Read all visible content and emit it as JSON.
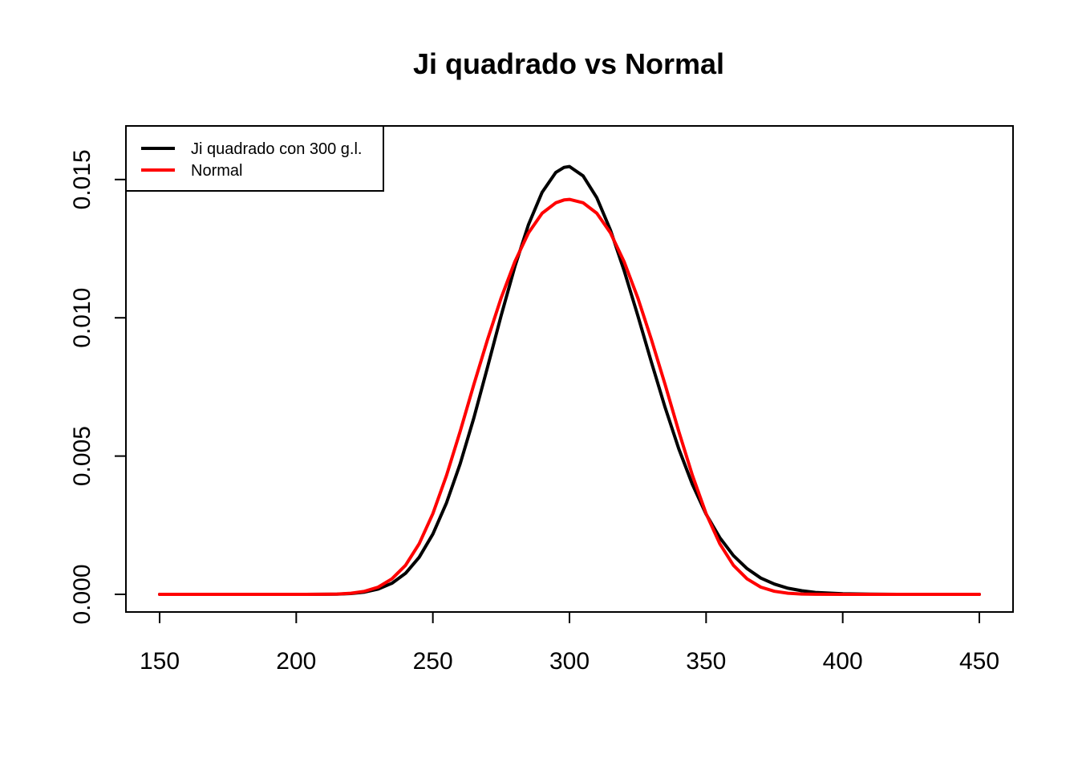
{
  "chart_data": {
    "type": "line",
    "title": "Ji quadrado vs Normal",
    "xlabel": "",
    "ylabel": "",
    "xlim": [
      150,
      450
    ],
    "ylim": [
      0,
      0.0163
    ],
    "x_ticks": [
      150,
      200,
      250,
      300,
      350,
      400,
      450
    ],
    "x_tick_labels": [
      "150",
      "200",
      "250",
      "300",
      "350",
      "400",
      "450"
    ],
    "y_ticks": [
      0.0,
      0.005,
      0.01,
      0.015
    ],
    "y_tick_labels": [
      "0.000",
      "0.005",
      "0.010",
      "0.015"
    ],
    "grid": false,
    "legend_position": "top-left",
    "x": [
      150,
      160,
      170,
      180,
      190,
      200,
      210,
      215,
      220,
      225,
      230,
      235,
      240,
      245,
      250,
      255,
      260,
      265,
      270,
      275,
      280,
      285,
      290,
      295,
      298,
      300,
      305,
      310,
      315,
      320,
      325,
      330,
      335,
      340,
      345,
      350,
      355,
      360,
      365,
      370,
      375,
      380,
      385,
      390,
      400,
      410,
      420,
      430,
      440,
      450
    ],
    "series": [
      {
        "name": "Ji quadrado con 300 g.l.",
        "color": "#000000",
        "values": [
          0.0,
          0.0,
          0.0,
          0.0,
          0.0,
          1e-07,
          2e-06,
          8e-06,
          3e-05,
          8e-05,
          0.00019,
          0.0004,
          0.00076,
          0.00134,
          0.00218,
          0.00331,
          0.00472,
          0.00638,
          0.00821,
          0.01008,
          0.01185,
          0.01337,
          0.01454,
          0.01526,
          0.01544,
          0.01547,
          0.01513,
          0.01434,
          0.01317,
          0.01171,
          0.01008,
          0.00839,
          0.00676,
          0.00526,
          0.00397,
          0.0029,
          0.00205,
          0.0014,
          0.00093,
          0.00059,
          0.00037,
          0.00022,
          0.00013,
          7e-05,
          2e-05,
          5e-06,
          1e-06,
          0.0,
          0.0,
          0.0
        ]
      },
      {
        "name": "Normal",
        "color": "#ff0000",
        "values": [
          0.0,
          0.0,
          0.0,
          0.0,
          0.0,
          1e-07,
          3e-06,
          1.2e-05,
          4e-05,
          0.00011,
          0.00026,
          0.00056,
          0.00105,
          0.00183,
          0.00292,
          0.0043,
          0.00589,
          0.00759,
          0.00921,
          0.01072,
          0.01203,
          0.01307,
          0.01378,
          0.01416,
          0.01426,
          0.01428,
          0.01416,
          0.01378,
          0.01307,
          0.01203,
          0.01072,
          0.00921,
          0.00759,
          0.00589,
          0.0043,
          0.00292,
          0.00183,
          0.00105,
          0.00056,
          0.00026,
          0.00011,
          4e-05,
          1.2e-05,
          3e-06,
          1e-07,
          0.0,
          0.0,
          0.0,
          0.0,
          0.0
        ]
      }
    ]
  }
}
